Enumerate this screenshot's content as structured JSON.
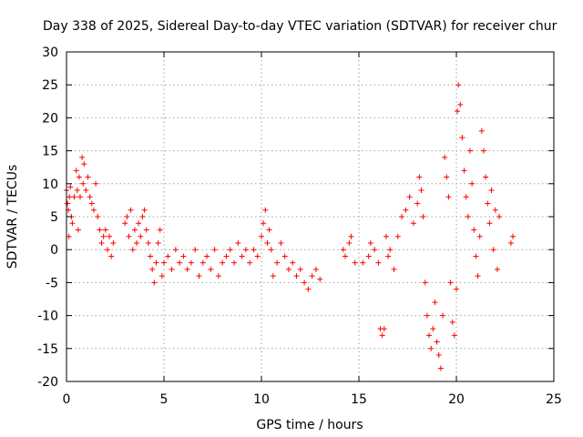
{
  "chart_data": {
    "type": "scatter",
    "title": "Day 338 of 2025, Sidereal Day-to-day VTEC variation (SDTVAR) for receiver chur",
    "xlabel": "GPS time / hours",
    "ylabel": "SDTVAR / TECUs",
    "xlim": [
      0,
      25
    ],
    "ylim": [
      -20,
      30
    ],
    "xticks": [
      0,
      5,
      10,
      15,
      20,
      25
    ],
    "yticks": [
      -20,
      -15,
      -10,
      -5,
      0,
      5,
      10,
      15,
      20,
      25,
      30
    ],
    "grid": true,
    "marker": "+",
    "series": [
      {
        "name": "SDTVAR",
        "color": "#ff0000",
        "points": [
          [
            0.0,
            9
          ],
          [
            0.05,
            7
          ],
          [
            0.1,
            6
          ],
          [
            0.12,
            2
          ],
          [
            0.15,
            8
          ],
          [
            0.2,
            9.5
          ],
          [
            0.25,
            5
          ],
          [
            0.3,
            4
          ],
          [
            0.4,
            8
          ],
          [
            0.5,
            12
          ],
          [
            0.55,
            9
          ],
          [
            0.6,
            3
          ],
          [
            0.65,
            11
          ],
          [
            0.7,
            8
          ],
          [
            0.8,
            14
          ],
          [
            0.85,
            10
          ],
          [
            0.9,
            13
          ],
          [
            1.0,
            9
          ],
          [
            1.1,
            11
          ],
          [
            1.2,
            8
          ],
          [
            1.3,
            7
          ],
          [
            1.4,
            6
          ],
          [
            1.5,
            10
          ],
          [
            1.6,
            5
          ],
          [
            1.7,
            3
          ],
          [
            1.8,
            1
          ],
          [
            1.9,
            2
          ],
          [
            2.0,
            3
          ],
          [
            2.1,
            0
          ],
          [
            2.2,
            2
          ],
          [
            2.3,
            -1
          ],
          [
            2.4,
            1
          ],
          [
            3.0,
            4
          ],
          [
            3.1,
            5
          ],
          [
            3.2,
            2
          ],
          [
            3.3,
            6
          ],
          [
            3.4,
            0
          ],
          [
            3.5,
            3
          ],
          [
            3.6,
            1
          ],
          [
            3.7,
            4
          ],
          [
            3.8,
            2
          ],
          [
            3.9,
            5
          ],
          [
            4.0,
            6
          ],
          [
            4.1,
            3
          ],
          [
            4.2,
            1
          ],
          [
            4.3,
            -1
          ],
          [
            4.4,
            -3
          ],
          [
            4.5,
            -5
          ],
          [
            4.6,
            -2
          ],
          [
            4.7,
            1
          ],
          [
            4.8,
            3
          ],
          [
            4.9,
            -4
          ],
          [
            5.0,
            -2
          ],
          [
            5.2,
            -1
          ],
          [
            5.4,
            -3
          ],
          [
            5.6,
            0
          ],
          [
            5.8,
            -2
          ],
          [
            6.0,
            -1
          ],
          [
            6.2,
            -3
          ],
          [
            6.4,
            -2
          ],
          [
            6.6,
            0
          ],
          [
            6.8,
            -4
          ],
          [
            7.0,
            -2
          ],
          [
            7.2,
            -1
          ],
          [
            7.4,
            -3
          ],
          [
            7.6,
            0
          ],
          [
            7.8,
            -4
          ],
          [
            8.0,
            -2
          ],
          [
            8.2,
            -1
          ],
          [
            8.4,
            0
          ],
          [
            8.6,
            -2
          ],
          [
            8.8,
            1
          ],
          [
            9.0,
            -1
          ],
          [
            9.2,
            0
          ],
          [
            9.4,
            -2
          ],
          [
            9.6,
            0
          ],
          [
            9.8,
            -1
          ],
          [
            10.0,
            2
          ],
          [
            10.1,
            4
          ],
          [
            10.2,
            6
          ],
          [
            10.3,
            1
          ],
          [
            10.4,
            3
          ],
          [
            10.5,
            0
          ],
          [
            10.6,
            -4
          ],
          [
            10.8,
            -2
          ],
          [
            11.0,
            1
          ],
          [
            11.2,
            -1
          ],
          [
            11.4,
            -3
          ],
          [
            11.6,
            -2
          ],
          [
            11.8,
            -4
          ],
          [
            12.0,
            -3
          ],
          [
            12.2,
            -5
          ],
          [
            12.4,
            -6
          ],
          [
            12.6,
            -4
          ],
          [
            12.8,
            -3
          ],
          [
            13.0,
            -4.5
          ],
          [
            14.2,
            0
          ],
          [
            14.3,
            -1
          ],
          [
            14.5,
            1
          ],
          [
            14.6,
            2
          ],
          [
            14.8,
            -2
          ],
          [
            15.2,
            -2
          ],
          [
            15.5,
            -1
          ],
          [
            15.6,
            1
          ],
          [
            15.8,
            0
          ],
          [
            16.0,
            -2
          ],
          [
            16.1,
            -12
          ],
          [
            16.2,
            -13
          ],
          [
            16.3,
            -12
          ],
          [
            16.4,
            2
          ],
          [
            16.5,
            -1
          ],
          [
            16.6,
            0
          ],
          [
            16.8,
            -3
          ],
          [
            17.0,
            2
          ],
          [
            17.2,
            5
          ],
          [
            17.4,
            6
          ],
          [
            17.6,
            8
          ],
          [
            17.8,
            4
          ],
          [
            18.0,
            7
          ],
          [
            18.1,
            11
          ],
          [
            18.2,
            9
          ],
          [
            18.3,
            5
          ],
          [
            18.4,
            -5
          ],
          [
            18.5,
            -10
          ],
          [
            18.6,
            -13
          ],
          [
            18.7,
            -15
          ],
          [
            18.8,
            -12
          ],
          [
            18.9,
            -8
          ],
          [
            19.0,
            -14
          ],
          [
            19.1,
            -16
          ],
          [
            19.2,
            -18
          ],
          [
            19.3,
            -10
          ],
          [
            19.4,
            14
          ],
          [
            19.5,
            11
          ],
          [
            19.6,
            8
          ],
          [
            19.7,
            -5
          ],
          [
            19.8,
            -11
          ],
          [
            19.9,
            -13
          ],
          [
            20.0,
            -6
          ],
          [
            20.05,
            21
          ],
          [
            20.1,
            25
          ],
          [
            20.2,
            22
          ],
          [
            20.3,
            17
          ],
          [
            20.4,
            12
          ],
          [
            20.5,
            8
          ],
          [
            20.6,
            5
          ],
          [
            20.7,
            15
          ],
          [
            20.8,
            10
          ],
          [
            20.9,
            3
          ],
          [
            21.0,
            -1
          ],
          [
            21.1,
            -4
          ],
          [
            21.2,
            2
          ],
          [
            21.3,
            18
          ],
          [
            21.4,
            15
          ],
          [
            21.5,
            11
          ],
          [
            21.6,
            7
          ],
          [
            21.7,
            4
          ],
          [
            21.8,
            9
          ],
          [
            21.9,
            0
          ],
          [
            22.0,
            6
          ],
          [
            22.1,
            -3
          ],
          [
            22.2,
            5
          ],
          [
            22.8,
            1
          ],
          [
            22.9,
            2
          ]
        ]
      }
    ]
  }
}
